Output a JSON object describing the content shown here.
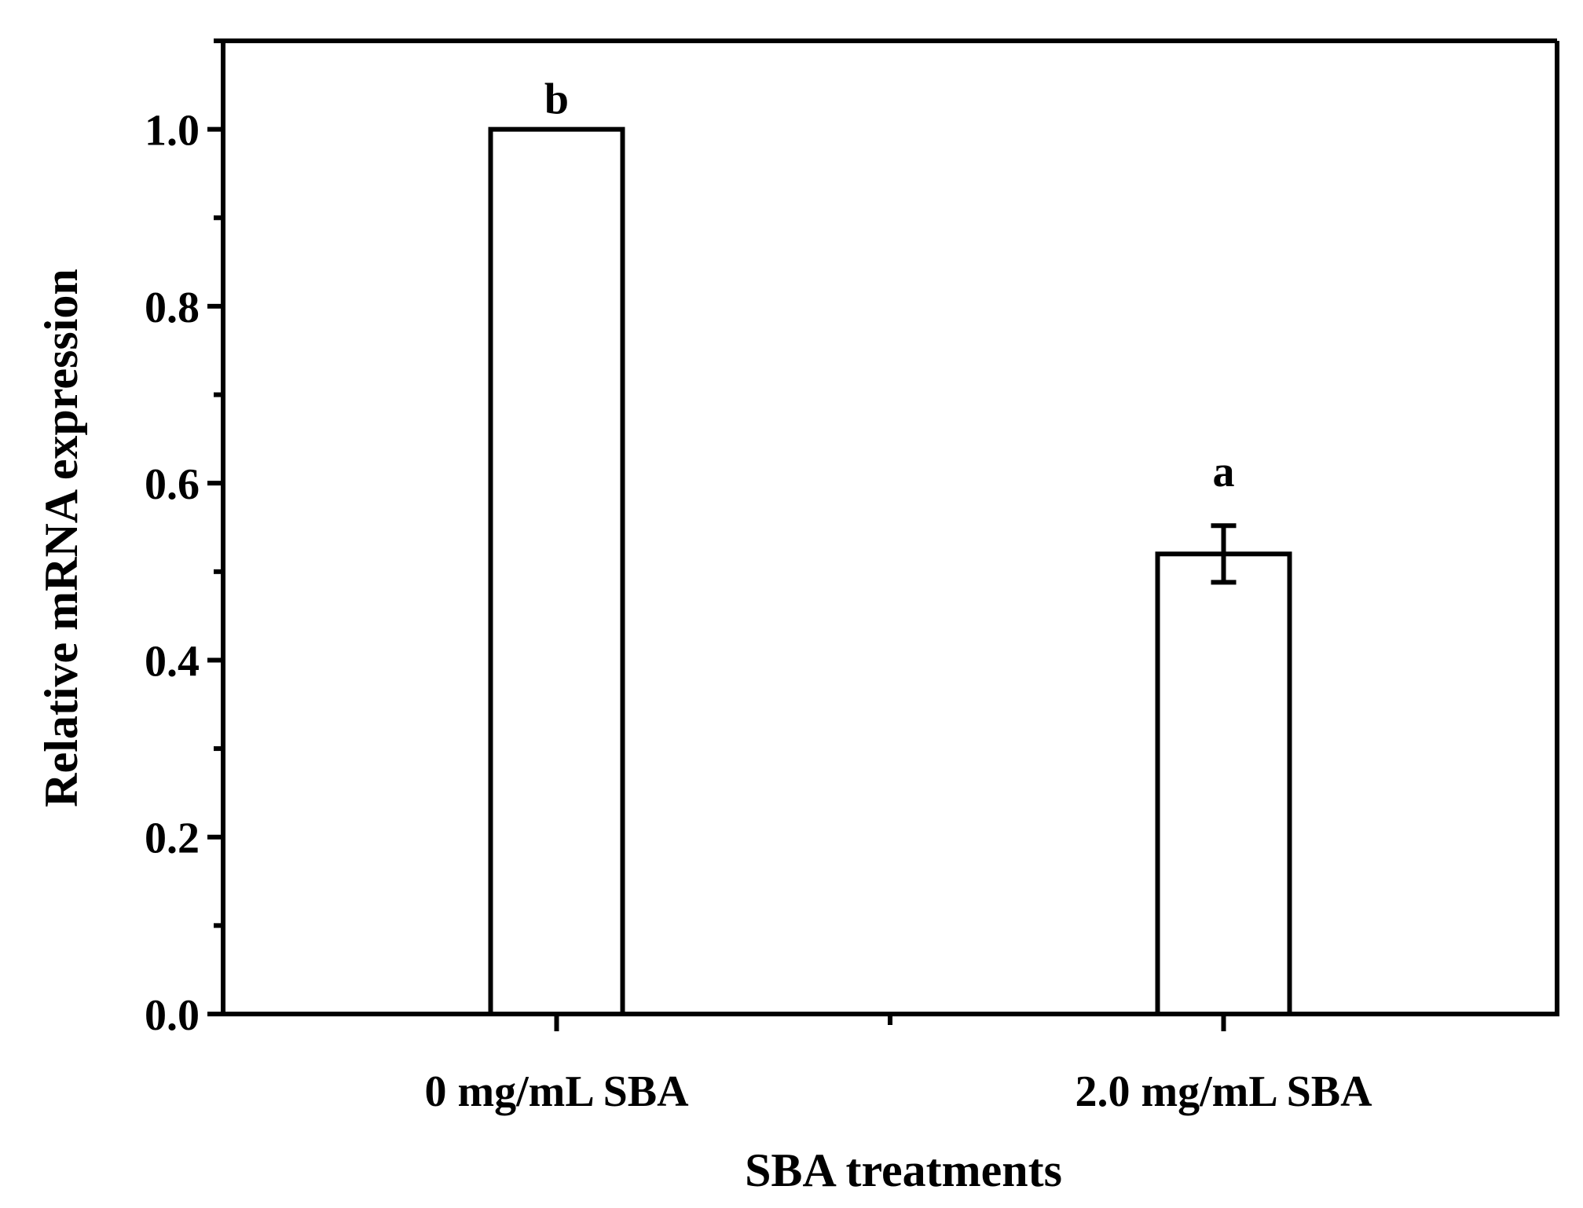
{
  "chart_data": {
    "type": "bar",
    "title": "",
    "xlabel": "SBA treatments",
    "ylabel": "Relative mRNA expression",
    "categories": [
      "0 mg/mL SBA",
      "2.0 mg/mL SBA"
    ],
    "values": [
      1.0,
      0.52
    ],
    "errors": [
      0,
      0.032
    ],
    "significance": [
      "b",
      "a"
    ],
    "ylim": [
      0,
      1.1
    ],
    "yticks": [
      0.0,
      0.2,
      0.4,
      0.6,
      0.8,
      1.0
    ],
    "ytick_labels": [
      "0.0",
      "0.2",
      "0.4",
      "0.6",
      "0.8",
      "1.0"
    ],
    "grid": false,
    "bar_fill": "#ffffff",
    "stroke_color": "#000000"
  }
}
